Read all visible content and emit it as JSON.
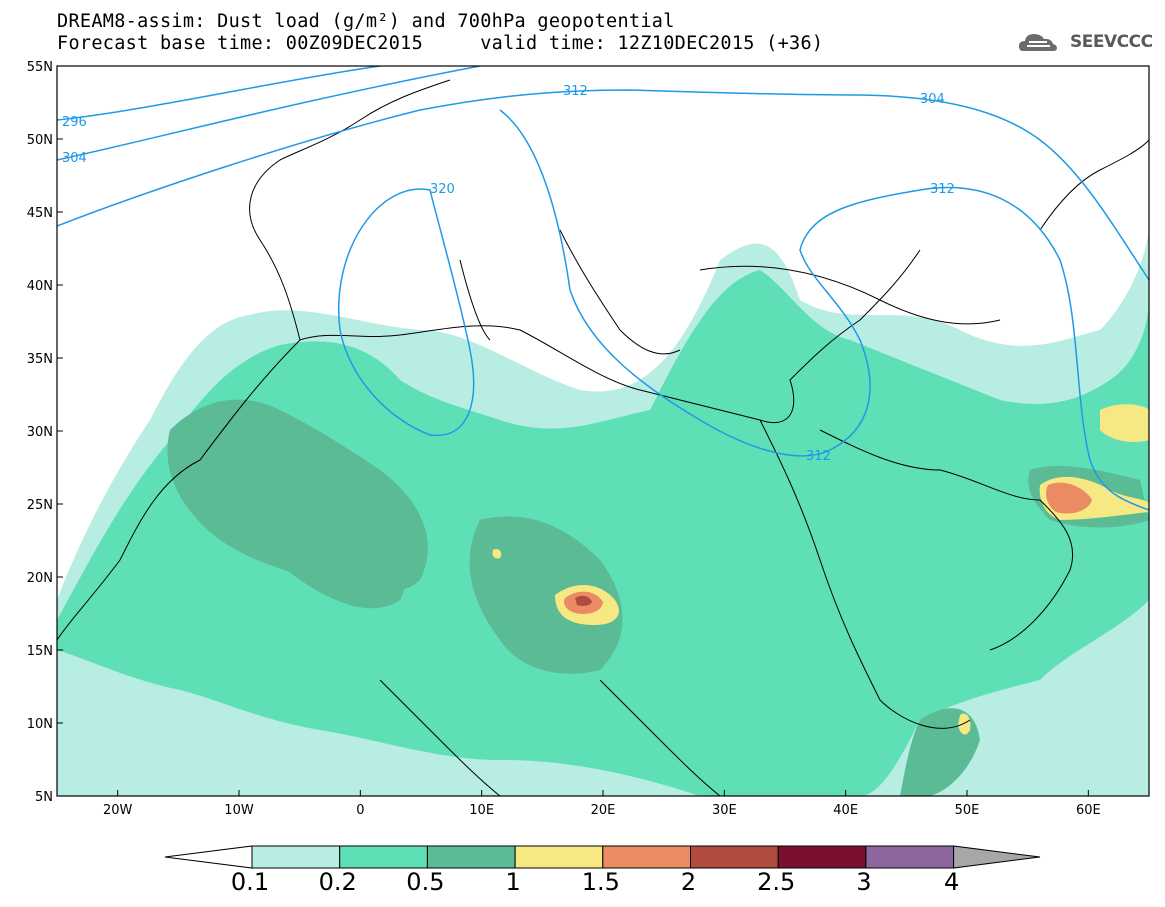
{
  "header": {
    "title_line1": "DREAM8-assim: Dust load (g/m²) and 700hPa geopotential",
    "title_line2": "Forecast base time: 00Z09DEC2015     valid time: 12Z10DEC2015 (+36)",
    "logo_text": "SEEVCCC"
  },
  "map": {
    "lon_range": [
      -25,
      65
    ],
    "lat_range": [
      5,
      55
    ],
    "x_ticks": [
      "20W",
      "10W",
      "0",
      "10E",
      "20E",
      "30E",
      "40E",
      "50E",
      "60E"
    ],
    "y_ticks": [
      "55N",
      "50N",
      "45N",
      "40N",
      "35N",
      "30N",
      "25N",
      "20N",
      "15N",
      "10N",
      "5N"
    ],
    "contour_color": "#1f9ae6",
    "contour_labels": [
      "296",
      "304",
      "312",
      "320",
      "312",
      "304",
      "312"
    ]
  },
  "colorbar": {
    "labels": [
      "0.1",
      "0.2",
      "0.5",
      "1",
      "1.5",
      "2",
      "2.5",
      "3",
      "4"
    ],
    "colors": [
      "#ffffff",
      "#b8ede3",
      "#5fdfb6",
      "#5abb94",
      "#f6e882",
      "#eb8b63",
      "#b04b3d",
      "#7a1030",
      "#8d679f",
      "#a7a7a7"
    ]
  }
}
